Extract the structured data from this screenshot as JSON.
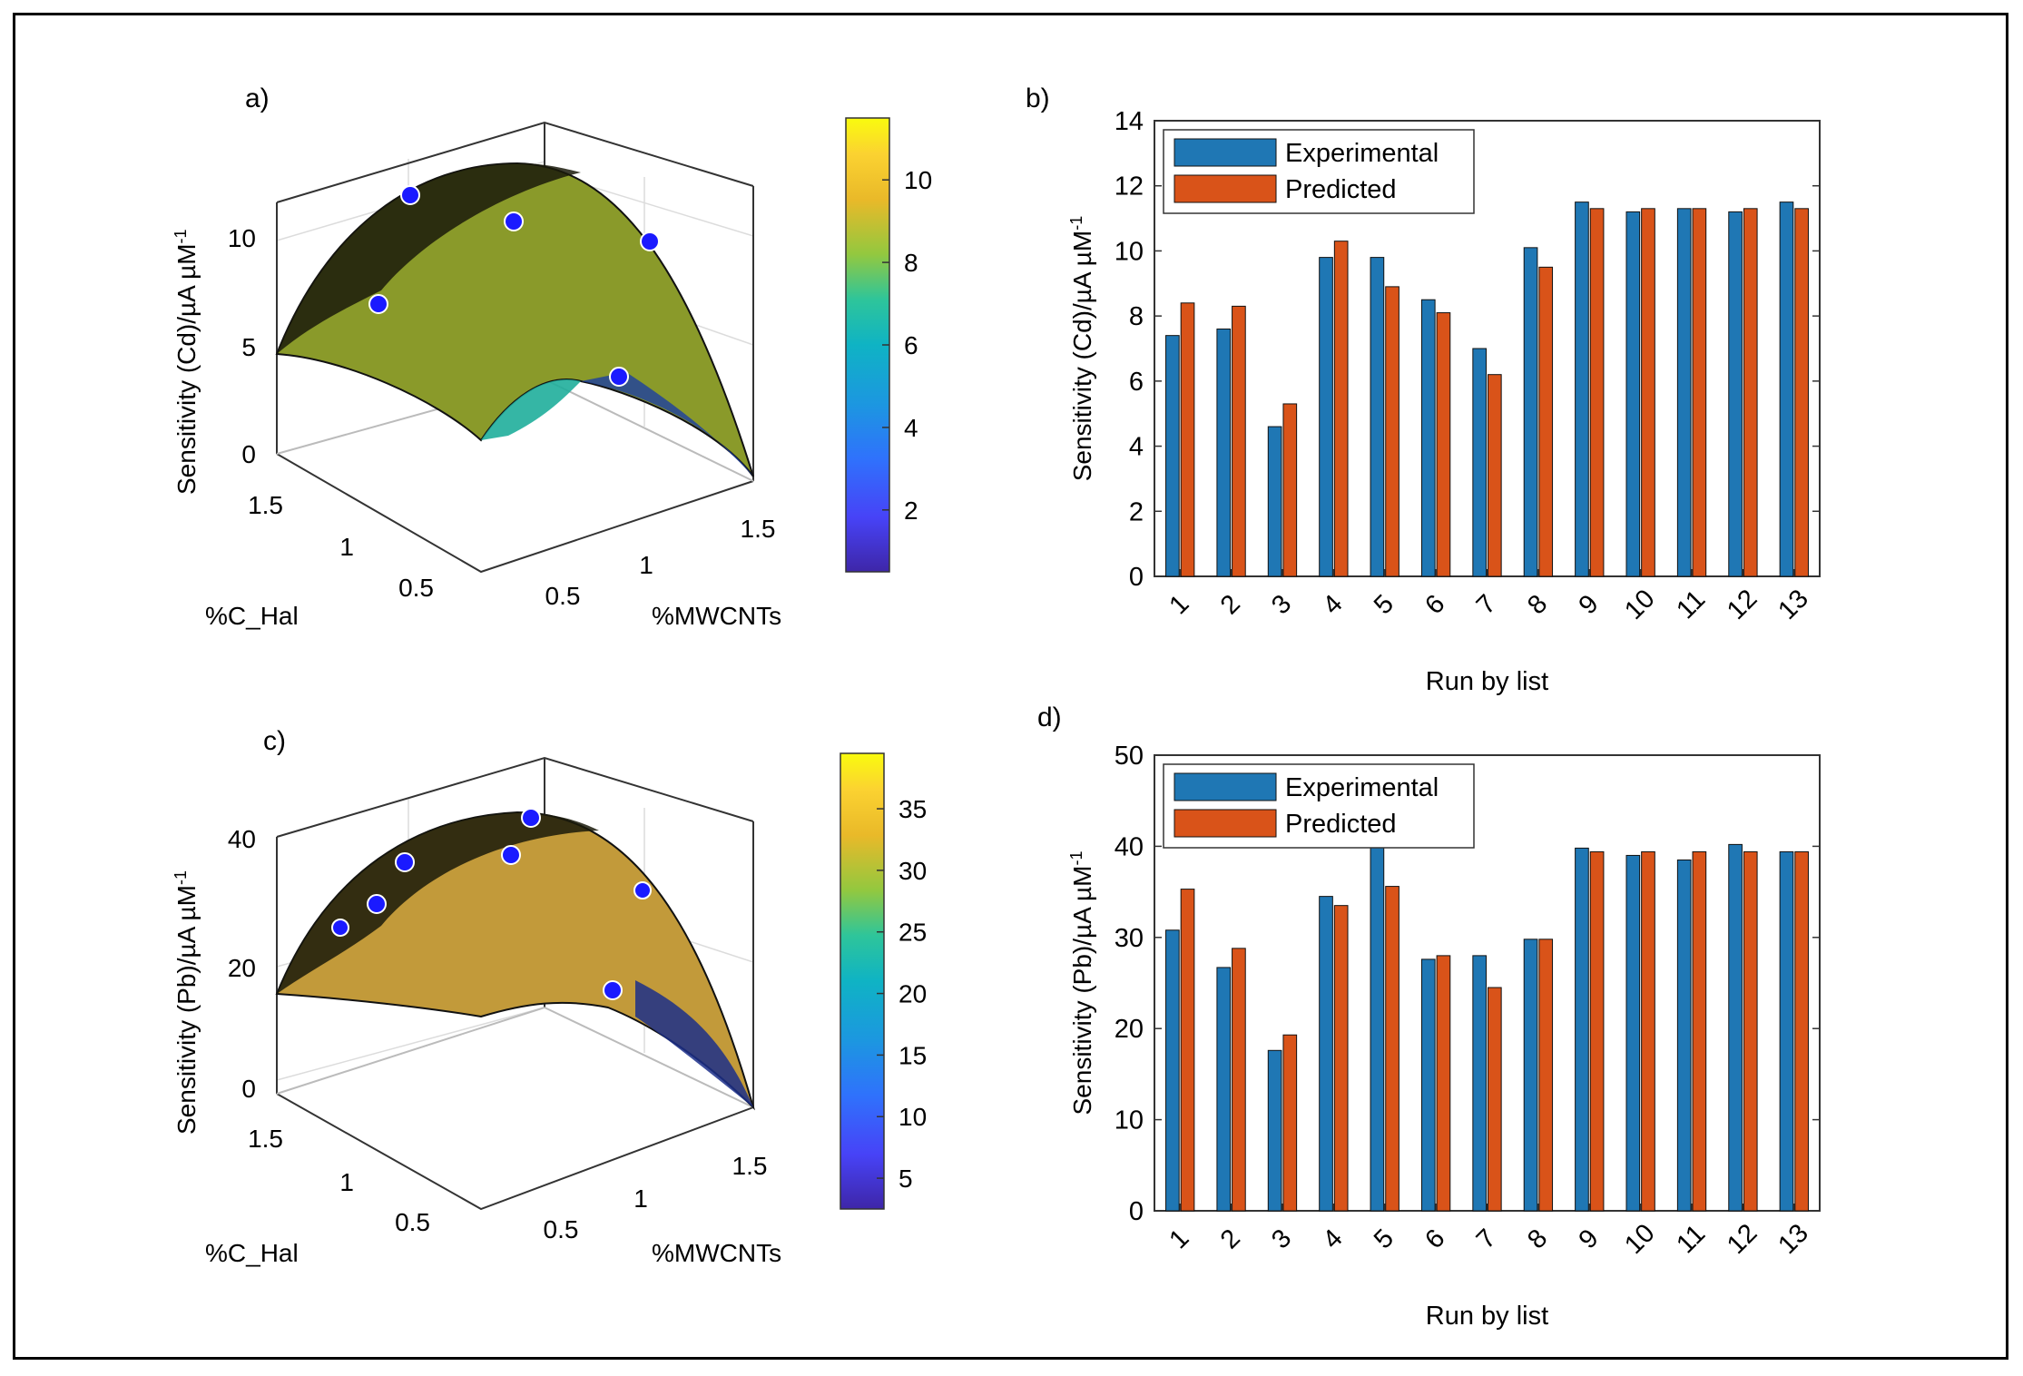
{
  "colors": {
    "experimental": "#1f77b4",
    "predicted": "#d95319",
    "point": "#1a1aff",
    "colormap": [
      "#3e26a8",
      "#4743f7",
      "#2f72fc",
      "#1c97e0",
      "#0fb3c4",
      "#2ec59a",
      "#93c83f",
      "#e9b929",
      "#fbd231",
      "#f9fb0e"
    ]
  },
  "chart_data": [
    {
      "panel": "a)",
      "type": "surface3d",
      "zlabel": "Sensitivity (Cd)/µA µM",
      "zlabel_sup": "-1",
      "xlabel": "%MWCNTs",
      "ylabel": "%C_Hal",
      "x_ticks": [
        "0.5",
        "1",
        "1.5"
      ],
      "y_ticks": [
        "0.5",
        "1",
        "1.5"
      ],
      "z_ticks": [
        "0",
        "5",
        "10"
      ],
      "zlim": [
        0,
        12
      ],
      "colorbar_ticks": [
        "2",
        "4",
        "6",
        "8",
        "10"
      ],
      "colorbar_range": [
        0.5,
        11.5
      ]
    },
    {
      "panel": "b)",
      "type": "bar",
      "categories": [
        "1",
        "2",
        "3",
        "4",
        "5",
        "6",
        "7",
        "8",
        "9",
        "10",
        "11",
        "12",
        "13"
      ],
      "series": [
        {
          "name": "Experimental",
          "values": [
            7.4,
            7.6,
            4.6,
            9.8,
            9.8,
            8.5,
            7.0,
            10.1,
            11.5,
            11.2,
            11.3,
            11.2,
            11.5
          ]
        },
        {
          "name": "Predicted",
          "values": [
            8.4,
            8.3,
            5.3,
            10.3,
            8.9,
            8.1,
            6.2,
            9.5,
            11.3,
            11.3,
            11.3,
            11.3,
            11.3
          ]
        }
      ],
      "xlabel": "Run by list",
      "ylabel": "Sensitivity (Cd)/µA µM",
      "ylabel_sup": "-1",
      "ylim": [
        0,
        14
      ],
      "y_ticks": [
        "0",
        "2",
        "4",
        "6",
        "8",
        "10",
        "12",
        "14"
      ],
      "legend": "top-left"
    },
    {
      "panel": "c)",
      "type": "surface3d",
      "zlabel": "Sensitivity (Pb)/µA µM",
      "zlabel_sup": "-1",
      "xlabel": "%MWCNTs",
      "ylabel": "%C_Hal",
      "x_ticks": [
        "0.5",
        "1",
        "1.5"
      ],
      "y_ticks": [
        "0.5",
        "1",
        "1.5"
      ],
      "z_ticks": [
        "0",
        "20",
        "40"
      ],
      "zlim": [
        0,
        42
      ],
      "colorbar_ticks": [
        "5",
        "10",
        "15",
        "20",
        "25",
        "30",
        "35"
      ],
      "colorbar_range": [
        2.5,
        39.5
      ]
    },
    {
      "panel": "d)",
      "type": "bar",
      "categories": [
        "1",
        "2",
        "3",
        "4",
        "5",
        "6",
        "7",
        "8",
        "9",
        "10",
        "11",
        "12",
        "13"
      ],
      "series": [
        {
          "name": "Experimental",
          "values": [
            30.8,
            26.7,
            17.6,
            34.5,
            40.2,
            27.6,
            28.0,
            29.8,
            39.8,
            39.0,
            38.5,
            40.2,
            39.4
          ]
        },
        {
          "name": "Predicted",
          "values": [
            35.3,
            28.8,
            19.3,
            33.5,
            35.6,
            28.0,
            24.5,
            29.8,
            39.4,
            39.4,
            39.4,
            39.4,
            39.4
          ]
        }
      ],
      "xlabel": "Run by list",
      "ylabel": "Sensitivity (Pb)/µA µM",
      "ylabel_sup": "-1",
      "ylim": [
        0,
        50
      ],
      "y_ticks": [
        "0",
        "10",
        "20",
        "30",
        "40",
        "50"
      ],
      "legend": "top-left"
    }
  ]
}
